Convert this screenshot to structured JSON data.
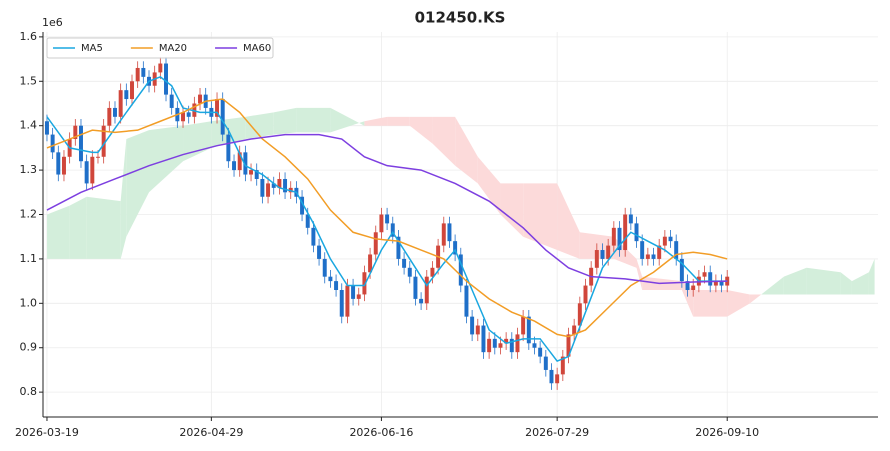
{
  "chart_data": {
    "type": "candlestick",
    "title": "012450.KS",
    "offset_label": "1e6",
    "xlim": [
      -0.7,
      146.6
    ],
    "ylim": [
      0.744,
      1.611
    ],
    "xticks": [
      {
        "value": 0,
        "label": "2026-03-19"
      },
      {
        "value": 29,
        "label": "2026-04-29"
      },
      {
        "value": 59,
        "label": "2026-06-16"
      },
      {
        "value": 90,
        "label": "2026-07-29"
      },
      {
        "value": 120,
        "label": "2026-09-10"
      }
    ],
    "yticks": [
      0.8,
      0.9,
      {
        "value": 1,
        "label": "1.0"
      },
      1.1,
      1.2,
      1.3,
      1.4,
      1.5,
      1.6
    ],
    "grid": true,
    "legend": "upper left",
    "up_color": "#d0463b",
    "down_color": "#1f6fc8",
    "cloud": {
      "up_color": "#d3eedb",
      "down_color": "#fcdada",
      "x": [
        0,
        4,
        7,
        13,
        14,
        18,
        24,
        29,
        35,
        40,
        44,
        50,
        56,
        60,
        64,
        68,
        72,
        76,
        80,
        84,
        90,
        94,
        100,
        104,
        105,
        112,
        114,
        120,
        124,
        126,
        130,
        134,
        140,
        142,
        145,
        146
      ],
      "span_a": [
        1.2,
        1.22,
        1.24,
        1.23,
        1.37,
        1.39,
        1.4,
        1.41,
        1.42,
        1.43,
        1.44,
        1.44,
        1.4,
        1.4,
        1.4,
        1.36,
        1.31,
        1.27,
        1.2,
        1.15,
        1.12,
        1.1,
        1.1,
        1.08,
        1.03,
        1.03,
        0.97,
        0.97,
        1.0,
        1.02,
        1.06,
        1.08,
        1.07,
        1.05,
        1.07,
        1.1
      ],
      "span_b": [
        1.1,
        1.1,
        1.1,
        1.1,
        1.15,
        1.25,
        1.32,
        1.35,
        1.37,
        1.38,
        1.385,
        1.385,
        1.41,
        1.42,
        1.42,
        1.42,
        1.42,
        1.33,
        1.27,
        1.27,
        1.27,
        1.16,
        1.15,
        1.1,
        1.06,
        1.05,
        1.03,
        1.03,
        1.02,
        1.02,
        1.02,
        1.02,
        1.02,
        1.02,
        1.02,
        1.02
      ]
    },
    "candles": {
      "x": [
        0,
        1,
        2,
        3,
        4,
        5,
        6,
        7,
        8,
        9,
        10,
        11,
        12,
        13,
        14,
        15,
        16,
        17,
        18,
        19,
        20,
        21,
        22,
        23,
        24,
        25,
        26,
        27,
        28,
        29,
        30,
        31,
        32,
        33,
        34,
        35,
        36,
        37,
        38,
        39,
        40,
        41,
        42,
        43,
        44,
        45,
        46,
        47,
        48,
        49,
        50,
        51,
        52,
        53,
        54,
        55,
        56,
        57,
        58,
        59,
        60,
        61,
        62,
        63,
        64,
        65,
        66,
        67,
        68,
        69,
        70,
        71,
        72,
        73,
        74,
        75,
        76,
        77,
        78,
        79,
        80,
        81,
        82,
        83,
        84,
        85,
        86,
        87,
        88,
        89,
        90,
        91,
        92,
        93,
        94,
        95,
        96,
        97,
        98,
        99,
        100,
        101,
        102,
        103,
        104,
        105,
        106,
        107,
        108,
        109,
        110,
        111,
        112,
        113,
        114,
        115,
        116,
        117,
        118,
        119,
        120
      ],
      "open": [
        1.41,
        1.38,
        1.34,
        1.29,
        1.33,
        1.37,
        1.4,
        1.32,
        1.27,
        1.33,
        1.33,
        1.4,
        1.44,
        1.42,
        1.48,
        1.46,
        1.5,
        1.53,
        1.51,
        1.49,
        1.52,
        1.54,
        1.47,
        1.44,
        1.41,
        1.43,
        1.42,
        1.45,
        1.47,
        1.44,
        1.42,
        1.46,
        1.38,
        1.32,
        1.3,
        1.34,
        1.29,
        1.3,
        1.28,
        1.24,
        1.27,
        1.26,
        1.28,
        1.25,
        1.26,
        1.24,
        1.2,
        1.17,
        1.13,
        1.1,
        1.06,
        1.05,
        1.03,
        0.97,
        1.04,
        1.01,
        1.02,
        1.07,
        1.11,
        1.16,
        1.2,
        1.18,
        1.15,
        1.1,
        1.08,
        1.06,
        1.01,
        1.0,
        1.06,
        1.08,
        1.13,
        1.18,
        1.14,
        1.11,
        1.04,
        0.97,
        0.93,
        0.95,
        0.89,
        0.92,
        0.9,
        0.91,
        0.92,
        0.89,
        0.93,
        0.97,
        0.91,
        0.9,
        0.88,
        0.85,
        0.82,
        0.84,
        0.88,
        0.93,
        0.95,
        1.0,
        1.04,
        1.08,
        1.12,
        1.1,
        1.13,
        1.17,
        1.12,
        1.2,
        1.18,
        1.14,
        1.1,
        1.11,
        1.1,
        1.13,
        1.15,
        1.14,
        1.1,
        1.05,
        1.03,
        1.04,
        1.06,
        1.07,
        1.04,
        1.05,
        1.04
      ],
      "high": [
        1.425,
        1.395,
        1.355,
        1.345,
        1.385,
        1.415,
        1.415,
        1.335,
        1.345,
        1.345,
        1.415,
        1.455,
        1.455,
        1.495,
        1.495,
        1.515,
        1.545,
        1.545,
        1.525,
        1.535,
        1.555,
        1.555,
        1.485,
        1.455,
        1.445,
        1.445,
        1.465,
        1.485,
        1.485,
        1.455,
        1.475,
        1.475,
        1.395,
        1.335,
        1.355,
        1.355,
        1.315,
        1.315,
        1.295,
        1.285,
        1.285,
        1.295,
        1.295,
        1.275,
        1.275,
        1.255,
        1.215,
        1.185,
        1.145,
        1.115,
        1.075,
        1.065,
        1.045,
        1.055,
        1.055,
        1.035,
        1.085,
        1.125,
        1.175,
        1.215,
        1.215,
        1.195,
        1.165,
        1.115,
        1.095,
        1.075,
        1.025,
        1.075,
        1.095,
        1.145,
        1.195,
        1.195,
        1.155,
        1.125,
        1.055,
        0.985,
        0.965,
        0.965,
        0.935,
        0.935,
        0.925,
        0.935,
        0.935,
        0.945,
        0.985,
        0.985,
        0.925,
        0.915,
        0.895,
        0.865,
        0.855,
        0.895,
        0.945,
        0.965,
        1.015,
        1.055,
        1.095,
        1.135,
        1.135,
        1.145,
        1.185,
        1.185,
        1.215,
        1.215,
        1.195,
        1.155,
        1.125,
        1.125,
        1.145,
        1.165,
        1.165,
        1.155,
        1.115,
        1.065,
        1.055,
        1.075,
        1.085,
        1.085,
        1.065,
        1.065,
        1.075
      ],
      "low": [
        1.365,
        1.325,
        1.275,
        1.275,
        1.315,
        1.355,
        1.305,
        1.255,
        1.255,
        1.315,
        1.315,
        1.385,
        1.405,
        1.405,
        1.445,
        1.445,
        1.485,
        1.495,
        1.475,
        1.475,
        1.505,
        1.455,
        1.425,
        1.395,
        1.395,
        1.405,
        1.405,
        1.435,
        1.425,
        1.405,
        1.405,
        1.365,
        1.305,
        1.285,
        1.285,
        1.275,
        1.275,
        1.265,
        1.225,
        1.225,
        1.245,
        1.245,
        1.235,
        1.235,
        1.225,
        1.185,
        1.155,
        1.115,
        1.085,
        1.045,
        1.035,
        1.015,
        0.955,
        0.955,
        0.995,
        0.995,
        1.005,
        1.055,
        1.095,
        1.145,
        1.165,
        1.135,
        1.085,
        1.065,
        1.045,
        0.995,
        0.985,
        0.985,
        1.045,
        1.065,
        1.115,
        1.125,
        1.095,
        1.025,
        0.955,
        0.915,
        0.915,
        0.875,
        0.875,
        0.885,
        0.885,
        0.895,
        0.875,
        0.875,
        0.915,
        0.895,
        0.885,
        0.865,
        0.835,
        0.805,
        0.805,
        0.825,
        0.865,
        0.915,
        0.935,
        0.985,
        1.025,
        1.065,
        1.085,
        1.085,
        1.115,
        1.105,
        1.105,
        1.165,
        1.125,
        1.085,
        1.085,
        1.085,
        1.085,
        1.115,
        1.125,
        1.085,
        1.035,
        1.015,
        1.015,
        1.025,
        1.045,
        1.025,
        1.025,
        1.025,
        1.025
      ],
      "close": [
        1.38,
        1.34,
        1.29,
        1.33,
        1.37,
        1.4,
        1.32,
        1.27,
        1.33,
        1.33,
        1.4,
        1.44,
        1.42,
        1.48,
        1.46,
        1.5,
        1.53,
        1.51,
        1.49,
        1.52,
        1.54,
        1.47,
        1.44,
        1.41,
        1.43,
        1.42,
        1.45,
        1.47,
        1.44,
        1.42,
        1.46,
        1.38,
        1.32,
        1.3,
        1.34,
        1.29,
        1.3,
        1.28,
        1.24,
        1.27,
        1.26,
        1.28,
        1.25,
        1.26,
        1.24,
        1.2,
        1.17,
        1.13,
        1.1,
        1.06,
        1.05,
        1.03,
        0.97,
        1.04,
        1.01,
        1.02,
        1.07,
        1.11,
        1.16,
        1.2,
        1.18,
        1.15,
        1.1,
        1.08,
        1.06,
        1.01,
        1.0,
        1.06,
        1.08,
        1.13,
        1.18,
        1.14,
        1.11,
        1.04,
        0.97,
        0.93,
        0.95,
        0.89,
        0.92,
        0.9,
        0.91,
        0.92,
        0.89,
        0.93,
        0.97,
        0.91,
        0.9,
        0.88,
        0.85,
        0.82,
        0.84,
        0.88,
        0.93,
        0.95,
        1.0,
        1.04,
        1.08,
        1.12,
        1.1,
        1.13,
        1.17,
        1.12,
        1.2,
        1.18,
        1.14,
        1.1,
        1.11,
        1.1,
        1.13,
        1.15,
        1.14,
        1.1,
        1.05,
        1.03,
        1.04,
        1.06,
        1.07,
        1.04,
        1.05,
        1.04,
        1.06
      ]
    },
    "series": [
      {
        "name": "MA5",
        "color": "#1aa7e0",
        "x": [
          0,
          4,
          8,
          9,
          14,
          18,
          20,
          22,
          24,
          27,
          30,
          32,
          35,
          38,
          41,
          44,
          47,
          50,
          53,
          56,
          59,
          61,
          64,
          67,
          70,
          72,
          75,
          78,
          81,
          84,
          87,
          90,
          92,
          95,
          98,
          101,
          103,
          106,
          109,
          112,
          115,
          118,
          120
        ],
        "values": [
          1.42,
          1.35,
          1.34,
          1.34,
          1.43,
          1.5,
          1.51,
          1.49,
          1.44,
          1.43,
          1.43,
          1.39,
          1.31,
          1.29,
          1.26,
          1.25,
          1.18,
          1.1,
          1.04,
          1.04,
          1.12,
          1.16,
          1.1,
          1.04,
          1.09,
          1.12,
          1.03,
          0.94,
          0.91,
          0.92,
          0.92,
          0.87,
          0.88,
          0.98,
          1.08,
          1.13,
          1.16,
          1.14,
          1.12,
          1.09,
          1.05,
          1.05,
          1.05
        ]
      },
      {
        "name": "MA20",
        "color": "#f29d26",
        "x": [
          0,
          4,
          8,
          12,
          16,
          20,
          24,
          28,
          31,
          34,
          38,
          42,
          46,
          50,
          54,
          58,
          62,
          66,
          70,
          74,
          78,
          82,
          86,
          90,
          92,
          95,
          99,
          103,
          107,
          111,
          114,
          117,
          120
        ],
        "values": [
          1.35,
          1.37,
          1.39,
          1.385,
          1.39,
          1.41,
          1.43,
          1.455,
          1.46,
          1.43,
          1.37,
          1.33,
          1.28,
          1.21,
          1.16,
          1.145,
          1.14,
          1.12,
          1.1,
          1.05,
          1.01,
          0.98,
          0.96,
          0.93,
          0.925,
          0.94,
          0.99,
          1.04,
          1.07,
          1.11,
          1.115,
          1.11,
          1.1
        ]
      },
      {
        "name": "MA60",
        "color": "#7d3fe0",
        "x": [
          0,
          6,
          12,
          18,
          24,
          30,
          36,
          42,
          48,
          52,
          56,
          60,
          66,
          72,
          78,
          84,
          88,
          92,
          96,
          102,
          108,
          114,
          120
        ],
        "values": [
          1.21,
          1.25,
          1.28,
          1.31,
          1.335,
          1.355,
          1.37,
          1.38,
          1.38,
          1.37,
          1.33,
          1.31,
          1.3,
          1.27,
          1.23,
          1.17,
          1.12,
          1.08,
          1.06,
          1.055,
          1.045,
          1.048,
          1.05
        ]
      }
    ]
  }
}
